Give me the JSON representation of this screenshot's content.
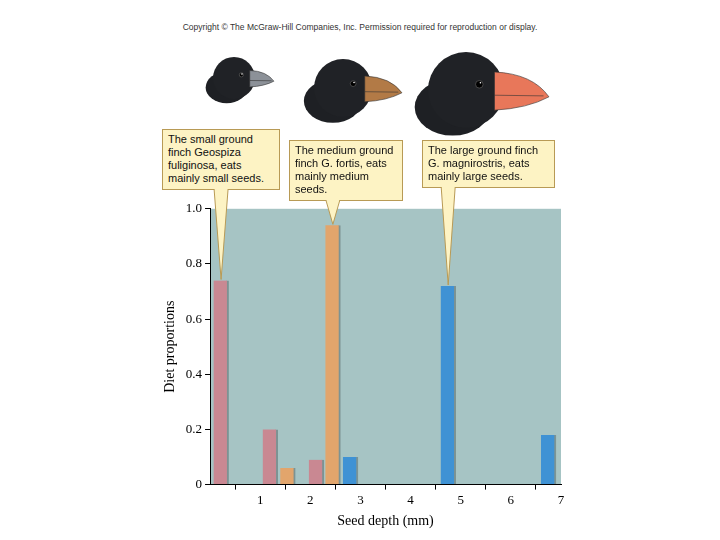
{
  "header": "Copyright © The McGraw-Hill Companies, Inc. Permission required for reproduction or display.",
  "chart_data": {
    "type": "bar",
    "x_label": "Seed depth (mm)",
    "y_label": "Diet proportions",
    "xlim": [
      0,
      7
    ],
    "xticks": [
      1,
      2,
      3,
      4,
      5,
      6,
      7
    ],
    "ylim": [
      0,
      1
    ],
    "yticks": [
      0,
      0.2,
      0.4,
      0.6,
      0.8,
      {
        "value": 1,
        "label": "1.0"
      }
    ],
    "grid": false,
    "series": [
      {
        "color": "#c98892",
        "x": [
          0.22,
          1.2,
          2.12
        ],
        "values": [
          0.74,
          0.2,
          0.09
        ],
        "annotation": "The small ground finch Geospiza fuliginosa, eats mainly small seeds."
      },
      {
        "color": "#e2a56c",
        "x": [
          1.55,
          2.45
        ],
        "values": [
          0.06,
          0.94
        ],
        "annotation": "The medium ground finch G. fortis, eats mainly medium seeds."
      },
      {
        "color": "#3f92d4",
        "x": [
          2.8,
          4.75,
          6.75
        ],
        "values": [
          0.1,
          0.72,
          0.18
        ],
        "annotation": "The large ground finch G. magnirostris, eats mainly large seeds."
      }
    ]
  }
}
